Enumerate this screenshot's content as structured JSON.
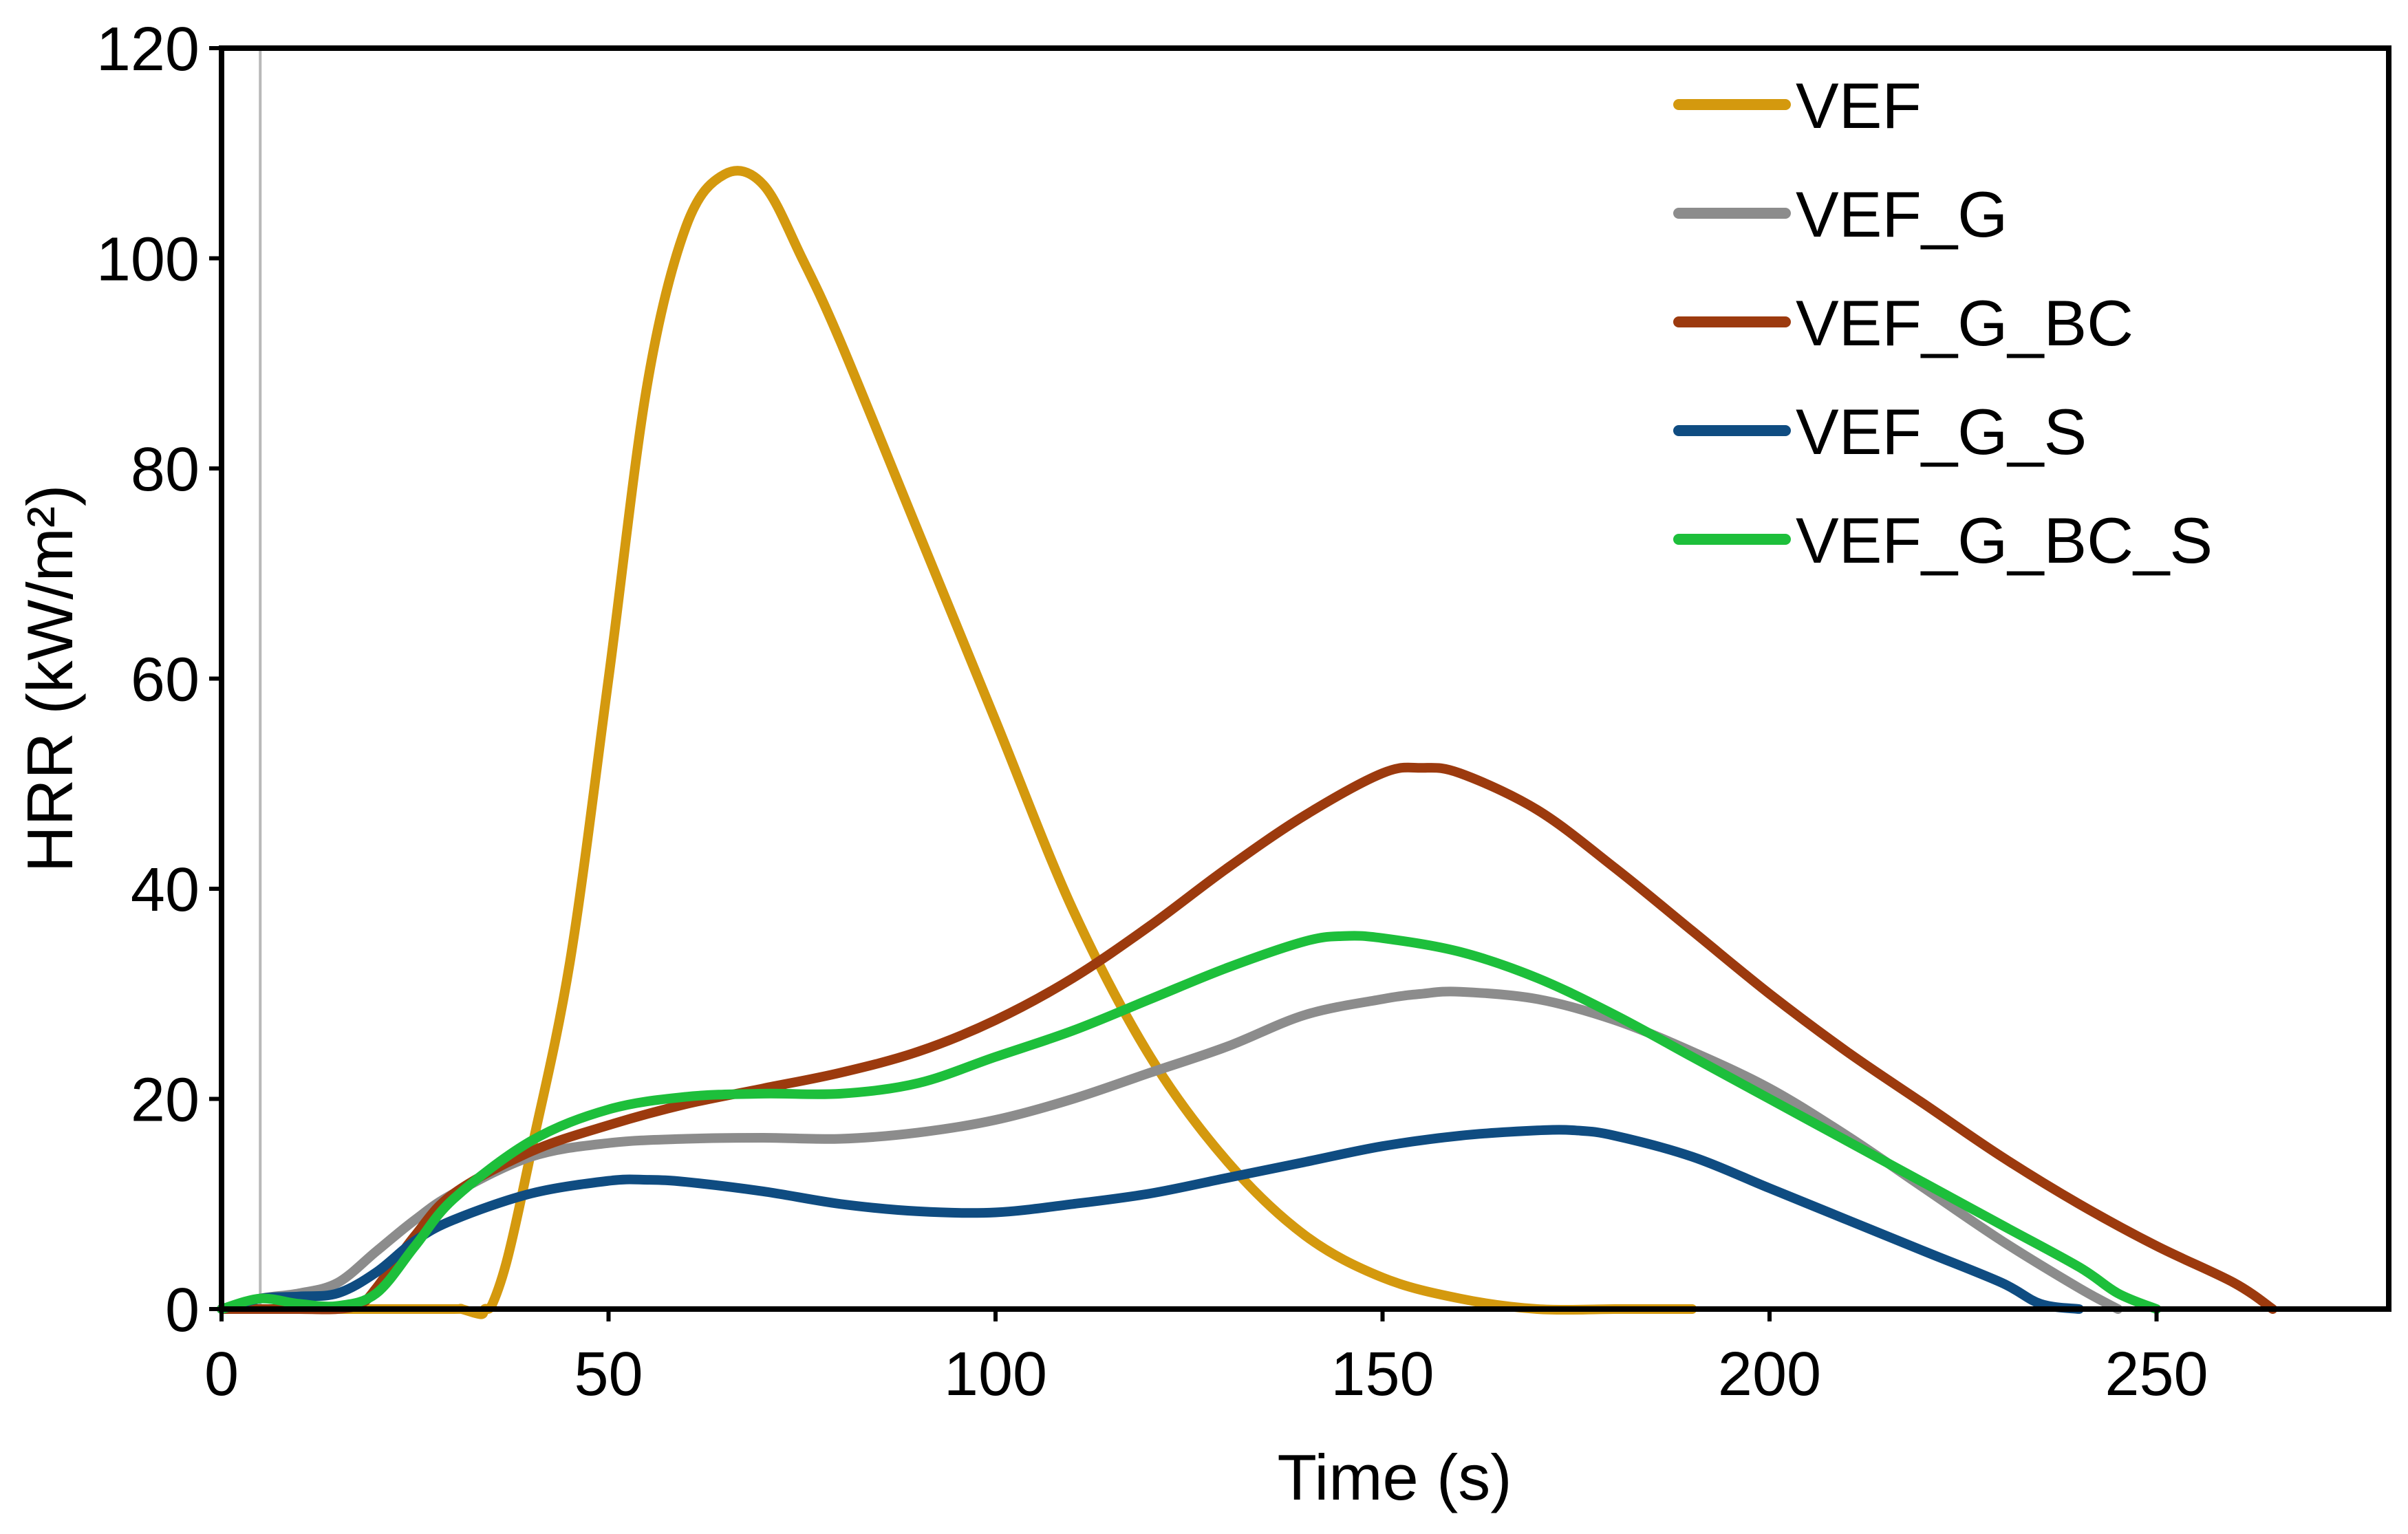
{
  "chart_data": {
    "type": "line",
    "xlabel": "Time (s)",
    "ylabel": "HRR (kW/m²)",
    "xlim": [
      0,
      280
    ],
    "ylim": [
      0,
      120
    ],
    "xticks": [
      0,
      50,
      100,
      150,
      200,
      250
    ],
    "yticks": [
      0,
      20,
      40,
      60,
      80,
      100,
      120
    ],
    "grid": false,
    "legend": "top-right",
    "series": [
      {
        "name": "VEF",
        "color": "#D4990E",
        "x": [
          0,
          5,
          10,
          20,
          30,
          31,
          33.5,
          34,
          35,
          37,
          40,
          45,
          50,
          55,
          60,
          65,
          70,
          75,
          80,
          90,
          100,
          110,
          120,
          130,
          140,
          150,
          160,
          170,
          180,
          185,
          190
        ],
        "y": [
          0,
          0,
          0,
          0,
          0,
          0,
          -0.5,
          0,
          0.5,
          5,
          15,
          33,
          60,
          88,
          103,
          108,
          107,
          100,
          92,
          74,
          56,
          38,
          24,
          14,
          7,
          3,
          1,
          0,
          0,
          0,
          0
        ]
      },
      {
        "name": "VEF_G",
        "color": "#8C8C8C",
        "x": [
          0,
          5,
          10,
          15,
          20,
          25,
          30,
          40,
          50,
          60,
          70,
          80,
          90,
          100,
          110,
          120,
          130,
          140,
          150,
          155,
          160,
          170,
          180,
          190,
          200,
          210,
          220,
          230,
          240,
          245
        ],
        "y": [
          0,
          1,
          1.5,
          2.5,
          5.5,
          8.5,
          11,
          14.5,
          15.8,
          16.2,
          16.3,
          16.2,
          16.8,
          18,
          20,
          22.5,
          25,
          28,
          29.5,
          30,
          30.2,
          29.5,
          27.5,
          24.5,
          21,
          16.5,
          11.5,
          6.5,
          2,
          0
        ]
      },
      {
        "name": "VEF_G_BC",
        "color": "#9C3A0E",
        "x": [
          0,
          5,
          10,
          15,
          18,
          20,
          25,
          30,
          40,
          50,
          60,
          70,
          80,
          90,
          100,
          110,
          120,
          130,
          140,
          150,
          155,
          160,
          170,
          180,
          190,
          200,
          210,
          220,
          230,
          240,
          250,
          260,
          265
        ],
        "y": [
          0,
          0,
          0,
          0,
          0.5,
          2,
          7,
          11,
          15,
          17.5,
          19.5,
          21,
          22.5,
          24.5,
          27.5,
          31.5,
          36.5,
          42,
          47,
          51,
          51.5,
          51,
          47.5,
          42,
          36,
          30,
          24.5,
          19.5,
          14.5,
          10,
          6,
          2.5,
          0
        ]
      },
      {
        "name": "VEF_G_S",
        "color": "#0F4C81",
        "x": [
          0,
          5,
          10,
          15,
          20,
          25,
          30,
          40,
          50,
          55,
          60,
          70,
          80,
          90,
          100,
          110,
          120,
          130,
          140,
          150,
          160,
          170,
          175,
          180,
          190,
          200,
          210,
          220,
          230,
          235,
          240
        ],
        "y": [
          0,
          1,
          1.2,
          1.5,
          3.5,
          6.5,
          8.5,
          11,
          12.2,
          12.3,
          12.1,
          11.2,
          10,
          9.3,
          9.2,
          10,
          11,
          12.5,
          14,
          15.5,
          16.5,
          17,
          17,
          16.5,
          14.5,
          11.5,
          8.5,
          5.5,
          2.5,
          0.5,
          0
        ]
      },
      {
        "name": "VEF_G_BC_S",
        "color": "#1DBF3B",
        "x": [
          0,
          5,
          10,
          15,
          20,
          25,
          30,
          40,
          50,
          60,
          70,
          80,
          90,
          100,
          110,
          120,
          130,
          140,
          145,
          150,
          160,
          170,
          180,
          190,
          200,
          210,
          220,
          230,
          240,
          245,
          250
        ],
        "y": [
          0,
          1,
          0.5,
          0.3,
          1.5,
          6,
          10.5,
          16,
          19,
          20.2,
          20.5,
          20.5,
          21.5,
          24,
          26.5,
          29.5,
          32.5,
          35,
          35.5,
          35.3,
          34,
          31.5,
          28,
          24,
          20,
          16,
          12,
          8,
          4,
          1.5,
          0
        ]
      }
    ]
  }
}
